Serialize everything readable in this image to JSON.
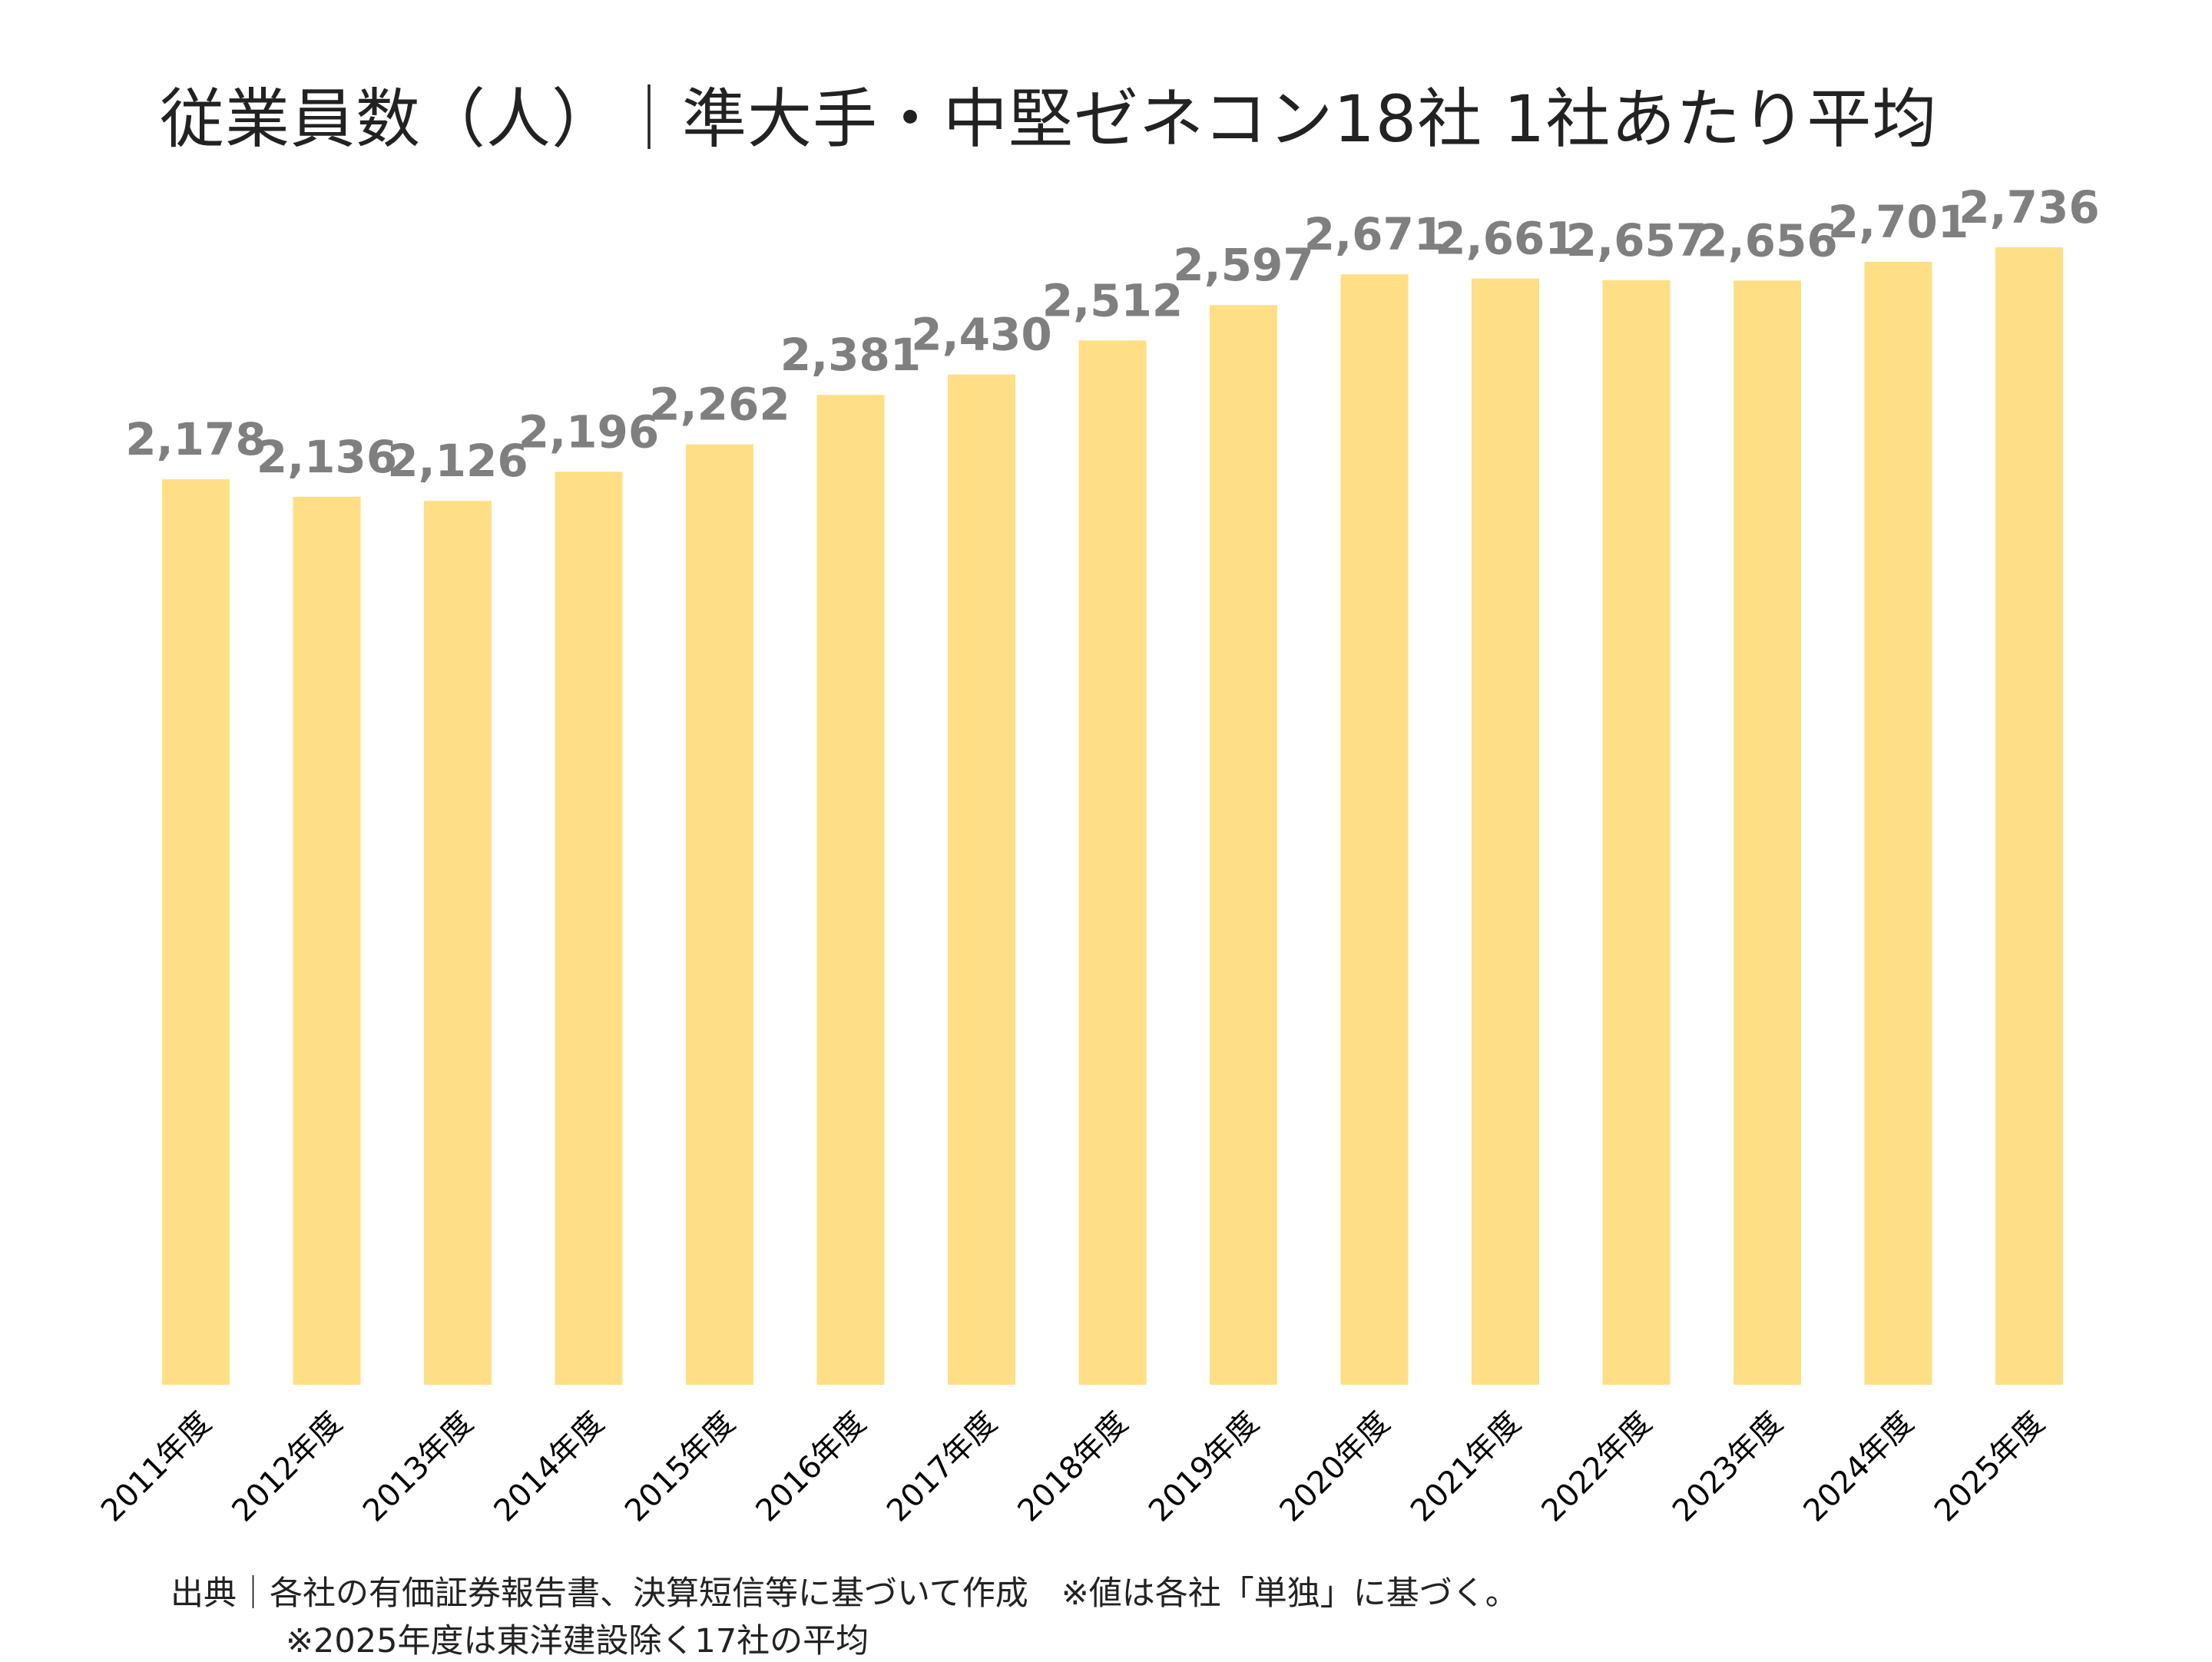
{
  "chart_data": {
    "type": "bar",
    "title": "従業員数（人）｜準大手・中堅ゼネコン18社 1社あたり平均",
    "categories": [
      "2011年度",
      "2012年度",
      "2013年度",
      "2014年度",
      "2015年度",
      "2016年度",
      "2017年度",
      "2018年度",
      "2019年度",
      "2020年度",
      "2021年度",
      "2022年度",
      "2023年度",
      "2024年度",
      "2025年度"
    ],
    "values": [
      2178,
      2136,
      2126,
      2196,
      2262,
      2381,
      2430,
      2512,
      2597,
      2671,
      2661,
      2657,
      2656,
      2701,
      2736
    ],
    "value_labels": [
      "2,178",
      "2,136",
      "2,126",
      "2,196",
      "2,262",
      "2,381",
      "2,430",
      "2,512",
      "2,597",
      "2,671",
      "2,661",
      "2,657",
      "2,656",
      "2,701",
      "2,736"
    ],
    "xlabel": "",
    "ylabel": "",
    "ylim": [
      0,
      2736
    ],
    "grid": false,
    "legend": "none",
    "bar_color": "#FFDF85",
    "label_color": "#7F7F7F"
  },
  "footnotes": {
    "source": "出典｜各社の有価証券報告書、決算短信等に基づいて作成　※値は各社「単独」に基づく。",
    "note_2025": "※2025年度は東洋建設除く17社の平均"
  }
}
